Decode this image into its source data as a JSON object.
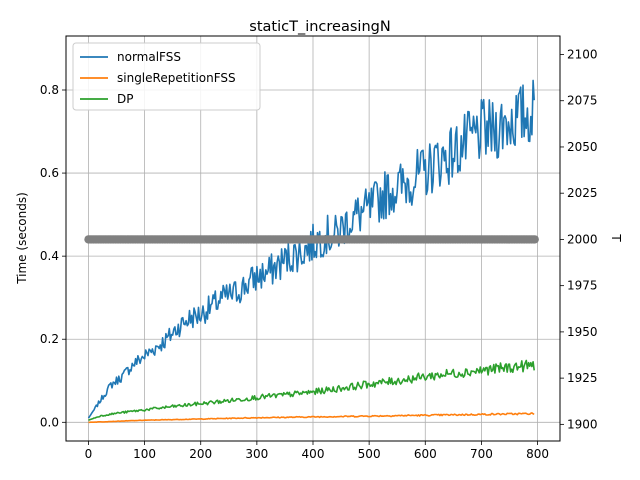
{
  "chart_data": {
    "type": "line",
    "title": "staticT_increasingN",
    "ylabel": "Time (seconds)",
    "y2label": "T",
    "xlim": [
      -40,
      840
    ],
    "ylim": [
      -0.045,
      0.93
    ],
    "y2lim": [
      1891,
      2110
    ],
    "grid": true,
    "legend_position": "top-left",
    "x_ticks": [
      0,
      100,
      200,
      300,
      400,
      500,
      600,
      700,
      800
    ],
    "y_ticks": [
      0.0,
      0.2,
      0.4,
      0.6,
      0.8
    ],
    "y_tick_labels": [
      "0.0",
      "0.2",
      "0.4",
      "0.6",
      "0.8"
    ],
    "y2_ticks": [
      1900,
      1925,
      1950,
      1975,
      2000,
      2025,
      2050,
      2075,
      2100
    ],
    "series": [
      {
        "name": "normalFSS",
        "color": "#1f77b4",
        "axis": "left",
        "x": [
          0,
          20,
          40,
          60,
          80,
          100,
          120,
          140,
          160,
          180,
          200,
          220,
          240,
          260,
          280,
          300,
          320,
          340,
          360,
          380,
          400,
          420,
          440,
          460,
          480,
          500,
          520,
          540,
          560,
          580,
          600,
          620,
          640,
          660,
          680,
          700,
          720,
          740,
          760,
          780,
          795
        ],
        "values": [
          0.01,
          0.05,
          0.09,
          0.11,
          0.14,
          0.16,
          0.18,
          0.2,
          0.23,
          0.25,
          0.26,
          0.28,
          0.3,
          0.31,
          0.33,
          0.35,
          0.36,
          0.38,
          0.4,
          0.41,
          0.43,
          0.45,
          0.45,
          0.48,
          0.5,
          0.51,
          0.54,
          0.56,
          0.57,
          0.59,
          0.6,
          0.63,
          0.64,
          0.66,
          0.68,
          0.7,
          0.7,
          0.72,
          0.73,
          0.74,
          0.75
        ]
      },
      {
        "name": "singleRepetitionFSS",
        "color": "#ff7f0e",
        "axis": "left",
        "x": [
          0,
          100,
          200,
          300,
          400,
          500,
          600,
          700,
          795
        ],
        "values": [
          0.0,
          0.005,
          0.008,
          0.011,
          0.013,
          0.015,
          0.017,
          0.019,
          0.021
        ]
      },
      {
        "name": "DP",
        "color": "#2ca02c",
        "axis": "left",
        "x": [
          0,
          20,
          50,
          100,
          150,
          200,
          250,
          300,
          350,
          400,
          450,
          500,
          550,
          600,
          650,
          700,
          750,
          795
        ],
        "values": [
          0.005,
          0.015,
          0.022,
          0.03,
          0.038,
          0.045,
          0.052,
          0.06,
          0.066,
          0.073,
          0.082,
          0.092,
          0.1,
          0.11,
          0.118,
          0.125,
          0.132,
          0.138
        ]
      },
      {
        "name": "T",
        "color": "#808080",
        "axis": "right",
        "type": "scatter",
        "x_range": [
          0,
          795
        ],
        "value": 2000
      }
    ]
  }
}
